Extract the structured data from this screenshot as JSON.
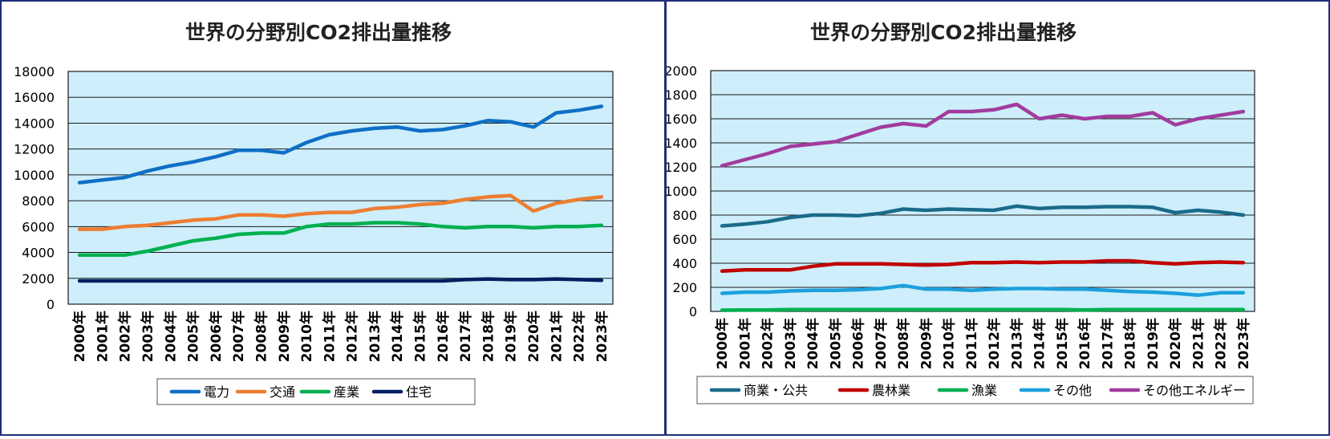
{
  "chart_data": [
    {
      "type": "line",
      "title": "世界の分野別CO2排出量推移",
      "xlabel": "",
      "ylabel": "",
      "ylim": [
        0,
        18000
      ],
      "y_ticks": [
        "0",
        "2000",
        "4000",
        "6000",
        "8000",
        "10000",
        "12000",
        "14000",
        "16000",
        "18000"
      ],
      "categories": [
        "2000年",
        "2001年",
        "2002年",
        "2003年",
        "2004年",
        "2005年",
        "2006年",
        "2007年",
        "2008年",
        "2009年",
        "2010年",
        "2011年",
        "2012年",
        "2013年",
        "2014年",
        "2015年",
        "2016年",
        "2017年",
        "2018年",
        "2019年",
        "2020年",
        "2021年",
        "2022年",
        "2023年"
      ],
      "grid": true,
      "legend_position": "bottom",
      "plot_background": "#cdeefa",
      "series": [
        {
          "name": "電力",
          "color": "#0f6fc6",
          "values": [
            9400,
            9600,
            9800,
            10300,
            10700,
            11000,
            11400,
            11900,
            11900,
            11700,
            12500,
            13100,
            13400,
            13600,
            13700,
            13400,
            13500,
            13800,
            14200,
            14100,
            13700,
            14800,
            15000,
            15300
          ]
        },
        {
          "name": "交通",
          "color": "#ed7d31",
          "values": [
            5800,
            5800,
            6000,
            6100,
            6300,
            6500,
            6600,
            6900,
            6900,
            6800,
            7000,
            7100,
            7100,
            7400,
            7500,
            7700,
            7800,
            8100,
            8300,
            8400,
            7200,
            7800,
            8100,
            8300
          ]
        },
        {
          "name": "産業",
          "color": "#00b050",
          "values": [
            3800,
            3800,
            3800,
            4100,
            4500,
            4900,
            5100,
            5400,
            5500,
            5500,
            6000,
            6200,
            6200,
            6300,
            6300,
            6200,
            6000,
            5900,
            6000,
            6000,
            5900,
            6000,
            6000,
            6100
          ]
        },
        {
          "name": "住宅",
          "color": "#002060",
          "values": [
            1800,
            1800,
            1800,
            1800,
            1800,
            1800,
            1800,
            1800,
            1800,
            1800,
            1800,
            1800,
            1800,
            1800,
            1800,
            1800,
            1800,
            1900,
            1950,
            1900,
            1900,
            1950,
            1900,
            1850
          ]
        }
      ]
    },
    {
      "type": "line",
      "title": "世界の分野別CO2排出量推移",
      "xlabel": "",
      "ylabel": "",
      "ylim": [
        0,
        2000
      ],
      "y_ticks": [
        "0",
        "200",
        "400",
        "600",
        "800",
        "1000",
        "1200",
        "1400",
        "1600",
        "1800",
        "2000"
      ],
      "categories": [
        "2000年",
        "2001年",
        "2002年",
        "2003年",
        "2004年",
        "2005年",
        "2006年",
        "2007年",
        "2008年",
        "2009年",
        "2010年",
        "2011年",
        "2012年",
        "2013年",
        "2014年",
        "2015年",
        "2016年",
        "2017年",
        "2018年",
        "2019年",
        "2020年",
        "2021年",
        "2022年",
        "2023年"
      ],
      "grid": true,
      "legend_position": "bottom",
      "plot_background": "#cdeefa",
      "series": [
        {
          "name": "商業・公共",
          "color": "#1b6a8a",
          "values": [
            710,
            725,
            745,
            780,
            800,
            800,
            795,
            815,
            850,
            840,
            850,
            845,
            840,
            875,
            855,
            865,
            865,
            870,
            870,
            865,
            820,
            840,
            825,
            800
          ]
        },
        {
          "name": "農林業",
          "color": "#c00000",
          "values": [
            335,
            345,
            345,
            345,
            375,
            395,
            395,
            395,
            390,
            385,
            390,
            405,
            405,
            410,
            405,
            410,
            410,
            420,
            420,
            405,
            395,
            405,
            410,
            405
          ]
        },
        {
          "name": "漁業",
          "color": "#00b050",
          "values": [
            10,
            12,
            12,
            15,
            15,
            15,
            15,
            15,
            15,
            15,
            15,
            15,
            15,
            15,
            15,
            15,
            12,
            15,
            15,
            15,
            15,
            15,
            15,
            15
          ]
        },
        {
          "name": "その他",
          "color": "#1ca0dc",
          "values": [
            150,
            160,
            160,
            170,
            175,
            175,
            180,
            190,
            215,
            185,
            185,
            175,
            185,
            190,
            190,
            185,
            185,
            175,
            165,
            160,
            150,
            135,
            155,
            155
          ]
        },
        {
          "name": "その他エネルギー",
          "color": "#a23b9e",
          "values": [
            1210,
            1260,
            1310,
            1370,
            1390,
            1410,
            1470,
            1530,
            1560,
            1540,
            1660,
            1660,
            1675,
            1720,
            1600,
            1630,
            1600,
            1620,
            1620,
            1650,
            1550,
            1600,
            1630,
            1660
          ]
        }
      ]
    }
  ]
}
